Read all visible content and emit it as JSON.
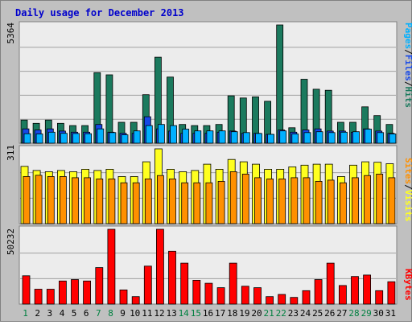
{
  "title": "Daily usage for December 2013",
  "colors": {
    "background": "#c0c0c0",
    "panel": "#ececec",
    "frame": "#808080",
    "grid": "#a0a0a0",
    "title": "#0000cc",
    "pages": "#00b0ff",
    "files": "#1648e8",
    "hits": "#1b7a5e",
    "visits": "#ffff20",
    "sites": "#ff9000",
    "kbytes": "#ff0000",
    "label_weekday": "#000000",
    "label_weekend": "#008040"
  },
  "legend": {
    "top": [
      "Pages",
      "Files",
      "Hits"
    ],
    "middle": [
      "Sites",
      "Visits"
    ],
    "bottom": [
      "KBytes"
    ],
    "separator": "/"
  },
  "chart_data": [
    {
      "type": "bar",
      "panel": "top",
      "max_label": "5364",
      "ylim": [
        0,
        5364
      ],
      "x": [
        "1",
        "2",
        "3",
        "4",
        "5",
        "6",
        "7",
        "8",
        "9",
        "10",
        "11",
        "12",
        "13",
        "14",
        "15",
        "16",
        "17",
        "18",
        "19",
        "20",
        "21",
        "22",
        "23",
        "24",
        "25",
        "26",
        "27",
        "28",
        "29",
        "30",
        "31"
      ],
      "weekend_days": [
        "1",
        "7",
        "8",
        "14",
        "15",
        "21",
        "22",
        "28",
        "29"
      ],
      "series": [
        {
          "name": "Hits",
          "values": [
            1050,
            900,
            1050,
            900,
            800,
            800,
            3200,
            3100,
            950,
            950,
            2200,
            3900,
            3000,
            850,
            800,
            800,
            850,
            2150,
            2050,
            2100,
            1900,
            5364,
            700,
            2900,
            2450,
            2400,
            950,
            950,
            1650,
            1250,
            850
          ]
        },
        {
          "name": "Files",
          "values": [
            650,
            600,
            650,
            550,
            500,
            500,
            850,
            500,
            450,
            450,
            1200,
            650,
            550,
            450,
            450,
            450,
            500,
            550,
            450,
            450,
            400,
            600,
            500,
            600,
            650,
            550,
            550,
            500,
            650,
            550,
            450
          ]
        },
        {
          "name": "Pages",
          "values": [
            430,
            420,
            500,
            450,
            440,
            430,
            650,
            480,
            380,
            560,
            800,
            850,
            800,
            640,
            560,
            560,
            560,
            520,
            480,
            440,
            400,
            560,
            420,
            480,
            520,
            480,
            500,
            520,
            640,
            480,
            420
          ]
        }
      ]
    },
    {
      "type": "bar",
      "panel": "middle",
      "max_label": "311",
      "ylim": [
        0,
        311
      ],
      "x": [
        "1",
        "2",
        "3",
        "4",
        "5",
        "6",
        "7",
        "8",
        "9",
        "10",
        "11",
        "12",
        "13",
        "14",
        "15",
        "16",
        "17",
        "18",
        "19",
        "20",
        "21",
        "22",
        "23",
        "24",
        "25",
        "26",
        "27",
        "28",
        "29",
        "30",
        "31"
      ],
      "series": [
        {
          "name": "Visits",
          "values": [
            238,
            221,
            216,
            221,
            216,
            226,
            221,
            226,
            196,
            196,
            257,
            311,
            226,
            216,
            221,
            247,
            226,
            267,
            257,
            247,
            226,
            226,
            236,
            243,
            247,
            247,
            196,
            243,
            257,
            255,
            249
          ]
        },
        {
          "name": "Sites",
          "values": [
            196,
            201,
            196,
            196,
            191,
            191,
            186,
            186,
            170,
            170,
            186,
            200,
            186,
            170,
            170,
            170,
            176,
            216,
            206,
            191,
            186,
            186,
            191,
            191,
            176,
            181,
            170,
            191,
            200,
            206,
            191
          ]
        }
      ]
    },
    {
      "type": "bar",
      "panel": "bottom",
      "max_label": "50232",
      "ylim": [
        0,
        50232
      ],
      "x": [
        "1",
        "2",
        "3",
        "4",
        "5",
        "6",
        "7",
        "8",
        "9",
        "10",
        "11",
        "12",
        "13",
        "14",
        "15",
        "16",
        "17",
        "18",
        "19",
        "20",
        "21",
        "22",
        "23",
        "24",
        "25",
        "26",
        "27",
        "28",
        "29",
        "30",
        "31"
      ],
      "series": [
        {
          "name": "KBytes",
          "values": [
            19000,
            10000,
            10000,
            15500,
            16500,
            15500,
            24500,
            50232,
            9500,
            5000,
            25500,
            50232,
            35500,
            27500,
            16000,
            14000,
            11000,
            27500,
            12000,
            11000,
            5000,
            6500,
            4500,
            9000,
            16500,
            27500,
            12500,
            18500,
            19500,
            9000,
            15000
          ]
        }
      ]
    }
  ]
}
